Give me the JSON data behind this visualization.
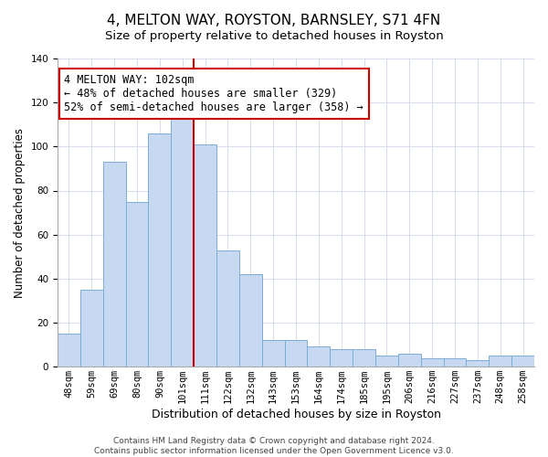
{
  "title": "4, MELTON WAY, ROYSTON, BARNSLEY, S71 4FN",
  "subtitle": "Size of property relative to detached houses in Royston",
  "xlabel": "Distribution of detached houses by size in Royston",
  "ylabel": "Number of detached properties",
  "bar_labels": [
    "48sqm",
    "59sqm",
    "69sqm",
    "80sqm",
    "90sqm",
    "101sqm",
    "111sqm",
    "122sqm",
    "132sqm",
    "143sqm",
    "153sqm",
    "164sqm",
    "174sqm",
    "185sqm",
    "195sqm",
    "206sqm",
    "216sqm",
    "227sqm",
    "237sqm",
    "248sqm",
    "258sqm"
  ],
  "bar_values": [
    15,
    35,
    93,
    75,
    106,
    114,
    101,
    53,
    42,
    12,
    12,
    9,
    8,
    8,
    5,
    6,
    4,
    4,
    3,
    5,
    5
  ],
  "bar_color": "#c6d9f1",
  "bar_edge_color": "#7badd4",
  "vline_x": 6,
  "vline_color": "#cc0000",
  "annotation_text": "4 MELTON WAY: 102sqm\n← 48% of detached houses are smaller (329)\n52% of semi-detached houses are larger (358) →",
  "annotation_box_color": "white",
  "annotation_box_edgecolor": "#cc0000",
  "ylim": [
    0,
    140
  ],
  "yticks": [
    0,
    20,
    40,
    60,
    80,
    100,
    120,
    140
  ],
  "footer_line1": "Contains HM Land Registry data © Crown copyright and database right 2024.",
  "footer_line2": "Contains public sector information licensed under the Open Government Licence v3.0.",
  "title_fontsize": 11,
  "subtitle_fontsize": 9.5,
  "xlabel_fontsize": 9,
  "ylabel_fontsize": 8.5,
  "tick_fontsize": 7.5,
  "annotation_fontsize": 8.5,
  "footer_fontsize": 6.5,
  "bar_width": 1.0
}
